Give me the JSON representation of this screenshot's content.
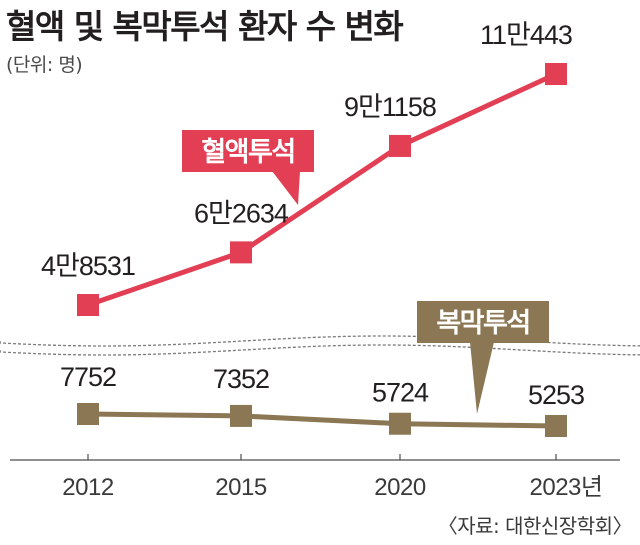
{
  "title": "혈액 및 복막투석 환자 수 변화",
  "unit_label": "(단위: 명)",
  "source": "〈자료: 대한신장학회〉",
  "colors": {
    "hemo": "#e23f55",
    "peritoneal": "#8b7753",
    "axis": "#4d4d4d",
    "wave": "#7a7a7a"
  },
  "chart_data": {
    "type": "line",
    "categories": [
      "2012",
      "2015",
      "2020",
      "2023년"
    ],
    "series": [
      {
        "name": "혈액투석",
        "values": [
          48531,
          62634,
          91158,
          110443
        ],
        "labels": [
          "4만8531",
          "6만2634",
          "9만1158",
          "11만443"
        ]
      },
      {
        "name": "복막투석",
        "values": [
          7752,
          7352,
          5724,
          5253
        ],
        "labels": [
          "7752",
          "7352",
          "5724",
          "5253"
        ]
      }
    ],
    "axis_break": true,
    "grid": false
  }
}
